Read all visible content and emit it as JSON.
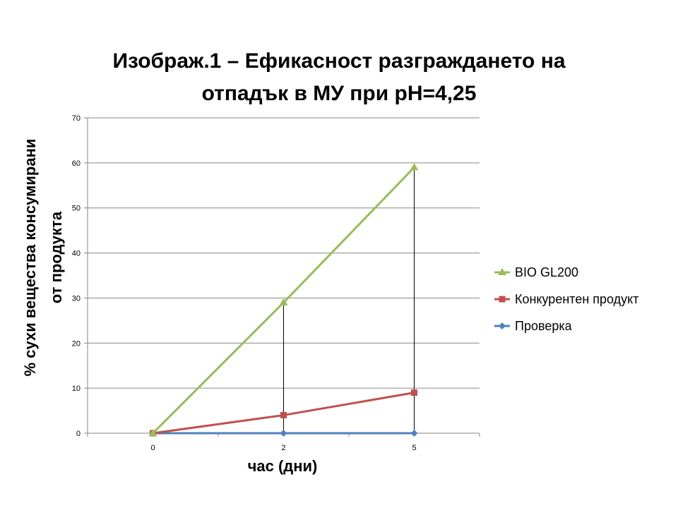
{
  "chart_data": {
    "type": "line",
    "title_lines": [
      "Изображ.1 – Ефикасност разграждането на",
      "отпадък в МУ при pH=4,25"
    ],
    "xlabel": "час (дни)",
    "ylabel_lines": [
      "% сухи вещества консумирани",
      "от продукта"
    ],
    "categories": [
      "0",
      "2",
      "5"
    ],
    "ylim": [
      0,
      70
    ],
    "yticks": [
      0,
      10,
      20,
      30,
      40,
      50,
      60,
      70
    ],
    "grid": true,
    "legend_position": "right",
    "drop_lines": true,
    "series": [
      {
        "name": "BIO GL200",
        "values": [
          0,
          29,
          59
        ],
        "color": "#9BBB59",
        "marker": "triangle"
      },
      {
        "name": "Конкурентен продукт",
        "values": [
          0,
          4,
          9
        ],
        "color": "#C0504D",
        "marker": "square"
      },
      {
        "name": "Проверка",
        "values": [
          0,
          0,
          0
        ],
        "color": "#4F81BD",
        "marker": "diamond"
      }
    ]
  }
}
